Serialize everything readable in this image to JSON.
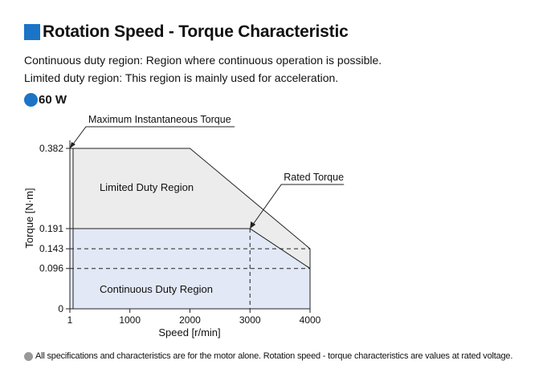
{
  "header": {
    "title": "Rotation Speed - Torque Characteristic",
    "desc1": "Continuous duty region: Region where continuous operation is possible.",
    "desc2": "Limited duty region: This region is mainly used for acceleration.",
    "model": "60 W",
    "accent_color": "#1b74c5"
  },
  "footnote": "All specifications and characteristics are for the motor alone. Rotation speed - torque characteristics are values at rated voltage.",
  "chart_data": {
    "type": "area",
    "xlabel": "Speed [r/min]",
    "ylabel": "Torque [N·m]",
    "xlim": [
      1,
      4000
    ],
    "ylim": [
      0,
      0.382
    ],
    "x_ticks": [
      "1",
      "1000",
      "2000",
      "3000",
      "4000"
    ],
    "x_tick_values": [
      1,
      1000,
      2000,
      3000,
      4000
    ],
    "y_ticks": [
      "0",
      "0.096",
      "0.143",
      "0.191",
      "0.382"
    ],
    "y_tick_values": [
      0,
      0.096,
      0.143,
      0.191,
      0.382
    ],
    "series": [
      {
        "name": "Limited Duty Region",
        "color": "#ececec",
        "x": [
          1,
          2000,
          4000,
          4000,
          3000,
          1
        ],
        "y": [
          0.382,
          0.382,
          0.143,
          0.096,
          0.191,
          0.191
        ]
      },
      {
        "name": "Continuous Duty Region",
        "color": "#e3e8f6",
        "x": [
          1,
          3000,
          4000,
          4000,
          1
        ],
        "y": [
          0.191,
          0.191,
          0.096,
          0,
          0
        ]
      }
    ],
    "reference_lines": [
      {
        "axis": "y",
        "value": 0.143,
        "x_to": 4000
      },
      {
        "axis": "y",
        "value": 0.096,
        "x_to": 4000
      },
      {
        "axis": "x",
        "value": 3000,
        "y_to": 0.191
      }
    ],
    "annotations": [
      {
        "text": "Maximum Instantaneous Torque",
        "x": 1,
        "y": 0.382
      },
      {
        "text": "Rated Torque",
        "x": 3000,
        "y": 0.191
      }
    ]
  }
}
